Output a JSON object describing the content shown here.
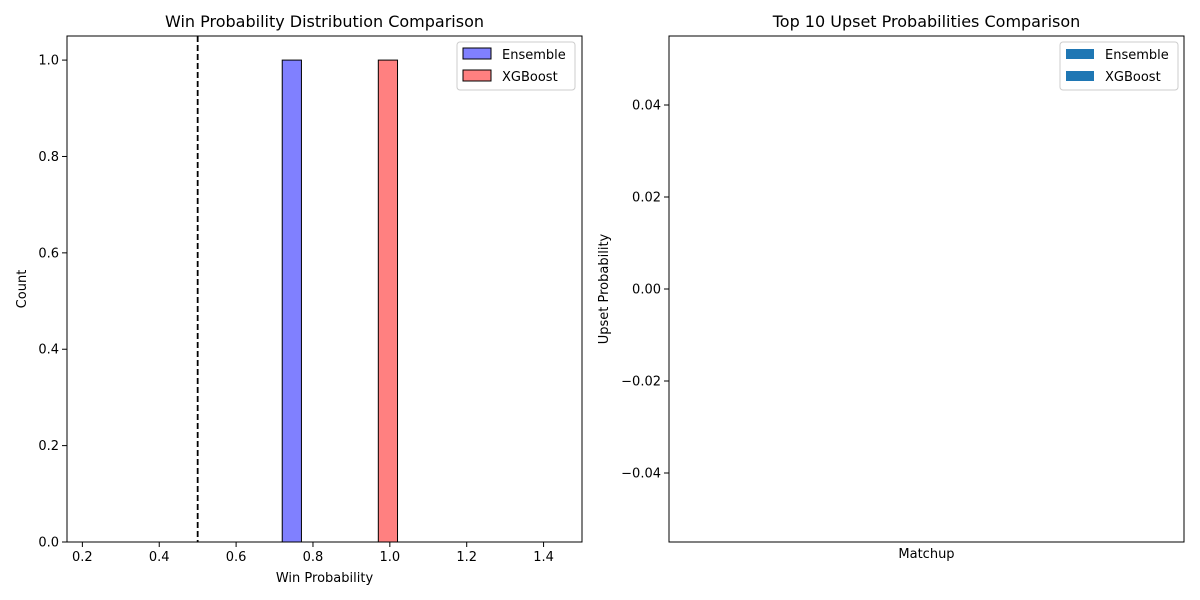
{
  "chart_data": [
    {
      "type": "bar",
      "subtype": "histogram",
      "title": "Win Probability Distribution Comparison",
      "xlabel": "Win Probability",
      "ylabel": "Count",
      "xlim": [
        0.16,
        1.5
      ],
      "ylim": [
        0,
        1.05
      ],
      "xticks": [
        "0.2",
        "0.4",
        "0.6",
        "0.8",
        "1.0",
        "1.2",
        "1.4"
      ],
      "yticks": [
        "0.0",
        "0.2",
        "0.4",
        "0.6",
        "0.8",
        "1.0"
      ],
      "reference_line": {
        "x": 0.5,
        "style": "dashed",
        "color": "#000000"
      },
      "series": [
        {
          "name": "Ensemble",
          "color": "#8080ff",
          "bins": [
            {
              "x0": 0.21,
              "x1": 0.72,
              "value": 0
            },
            {
              "x0": 0.72,
              "x1": 0.77,
              "value": 1
            },
            {
              "x0": 0.77,
              "x1": 1.46,
              "value": 0
            }
          ]
        },
        {
          "name": "XGBoost",
          "color": "#ff8080",
          "bins": [
            {
              "x0": 0.21,
              "x1": 0.97,
              "value": 0
            },
            {
              "x0": 0.97,
              "x1": 1.02,
              "value": 1
            },
            {
              "x0": 1.02,
              "x1": 1.46,
              "value": 0
            }
          ]
        }
      ],
      "legend": {
        "position": "top-right",
        "entries": [
          "Ensemble",
          "XGBoost"
        ]
      },
      "grid": false
    },
    {
      "type": "bar",
      "title": "Top 10 Upset Probabilities Comparison",
      "xlabel": "Matchup",
      "ylabel": "Upset Probability",
      "ylim": [
        -0.055,
        0.055
      ],
      "yticks": [
        "−0.04",
        "−0.02",
        "0.00",
        "0.02",
        "0.04"
      ],
      "categories": [],
      "series": [
        {
          "name": "Ensemble",
          "color": "#1f77b4",
          "values": []
        },
        {
          "name": "XGBoost",
          "color": "#1f77b4",
          "values": []
        }
      ],
      "legend": {
        "position": "top-right",
        "entries": [
          "Ensemble",
          "XGBoost"
        ]
      },
      "grid": false
    }
  ]
}
